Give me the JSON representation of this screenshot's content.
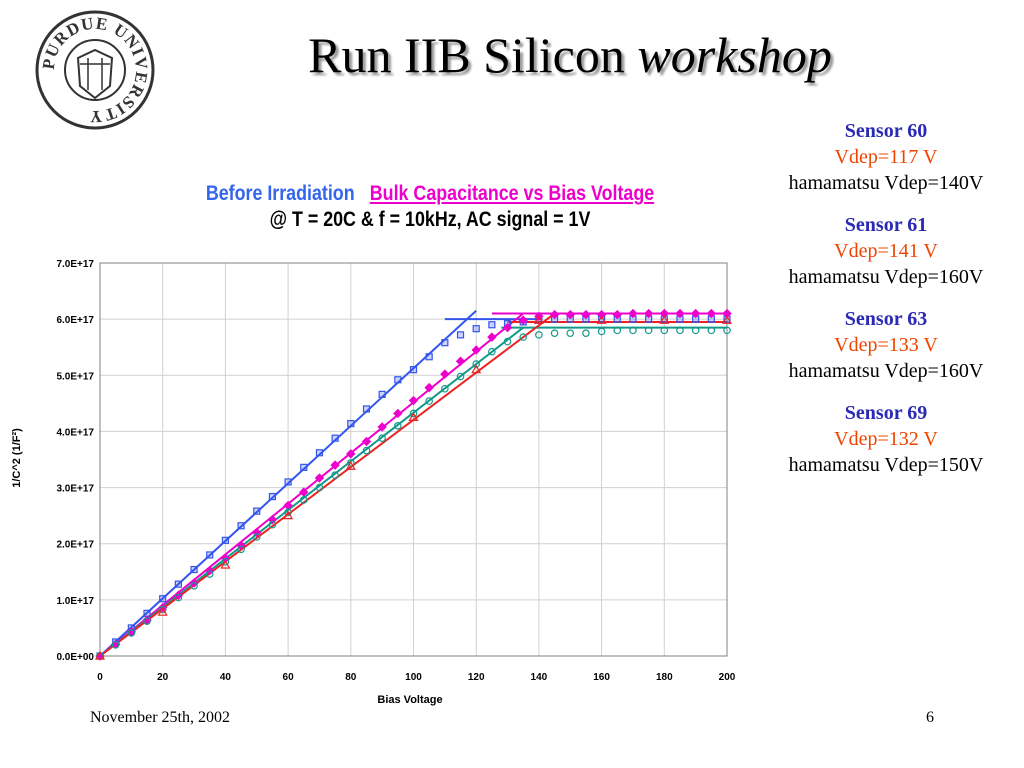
{
  "slide": {
    "title_main": "Run IIB Silicon ",
    "title_emph": "workshop",
    "footer_date": "November 25th, 2002",
    "page_number": "6",
    "logo_text": "PURDUE UNIVERSITY"
  },
  "heading": {
    "before": "Before Irradiation",
    "bulk": "Bulk Capacitance vs Bias Voltage",
    "conditions": "@ T = 20C & f = 10kHz, AC signal = 1V"
  },
  "sensors": [
    {
      "name": "Sensor 60",
      "vdep": "Vdep=117 V",
      "hamamatsu": "hamamatsu Vdep=140V"
    },
    {
      "name": "Sensor 61",
      "vdep": "Vdep=141 V",
      "hamamatsu": "hamamatsu Vdep=160V"
    },
    {
      "name": "Sensor 63",
      "vdep": "Vdep=133 V",
      "hamamatsu": "hamamatsu Vdep=160V"
    },
    {
      "name": "Sensor 69",
      "vdep": "Vdep=132 V",
      "hamamatsu": "hamamatsu Vdep=150V"
    }
  ],
  "chart_data": {
    "type": "scatter",
    "title": "",
    "xlabel": "Bias Voltage",
    "ylabel": "1/C^2 (1/F²)",
    "xlim": [
      0,
      200
    ],
    "ylim": [
      0,
      7e+17
    ],
    "x_ticks": [
      0,
      20,
      40,
      60,
      80,
      100,
      120,
      140,
      160,
      180,
      200
    ],
    "y_ticks": [
      0,
      1e+17,
      2e+17,
      3e+17,
      4e+17,
      5e+17,
      6e+17,
      7e+17
    ],
    "x_tick_labels": [
      "0",
      "20",
      "40",
      "60",
      "80",
      "100",
      "120",
      "140",
      "160",
      "180",
      "200"
    ],
    "y_tick_labels": [
      "0.0E+00",
      "1.0E+17",
      "2.0E+17",
      "3.0E+17",
      "4.0E+17",
      "5.0E+17",
      "6.0E+17",
      "7.0E+17"
    ],
    "grid": true,
    "series": [
      {
        "marker": "square",
        "color": "#3355ee",
        "x": [
          0,
          5,
          10,
          15,
          20,
          25,
          30,
          35,
          40,
          45,
          50,
          55,
          60,
          65,
          70,
          75,
          80,
          85,
          90,
          95,
          100,
          105,
          110,
          115,
          120,
          125,
          130,
          135,
          140,
          145,
          150,
          155,
          160,
          165,
          170,
          175,
          180,
          185,
          190,
          195,
          200
        ],
        "y": [
          0,
          2.5e+16,
          5e+16,
          7.6e+16,
          1.02e+17,
          1.28e+17,
          1.54e+17,
          1.8e+17,
          2.06e+17,
          2.32e+17,
          2.58e+17,
          2.84e+17,
          3.1e+17,
          3.36e+17,
          3.62e+17,
          3.88e+17,
          4.14e+17,
          4.4e+17,
          4.66e+17,
          4.92e+17,
          5.1e+17,
          5.33e+17,
          5.58e+17,
          5.72e+17,
          5.83e+17,
          5.9e+17,
          5.92e+17,
          5.95e+17,
          5.98e+17,
          6e+17,
          6e+17,
          6e+17,
          6e+17,
          6e+17,
          6e+17,
          6e+17,
          6e+17,
          6e+17,
          6e+17,
          6e+17,
          6e+17
        ],
        "fit": [
          [
            0,
            0
          ],
          [
            120,
            6.15e+17
          ]
        ],
        "plateau": [
          [
            110,
            6e+17
          ],
          [
            140,
            6e+17
          ]
        ]
      },
      {
        "marker": "diamond",
        "color": "#ee00cc",
        "x": [
          0,
          5,
          10,
          15,
          20,
          25,
          30,
          35,
          40,
          45,
          50,
          55,
          60,
          65,
          70,
          75,
          80,
          85,
          90,
          95,
          100,
          105,
          110,
          115,
          120,
          125,
          130,
          135,
          140,
          145,
          150,
          155,
          160,
          165,
          170,
          175,
          180,
          185,
          190,
          195,
          200
        ],
        "y": [
          0,
          2.1e+16,
          4.3e+16,
          6.4e+16,
          8.6e+16,
          1.08e+17,
          1.3e+17,
          1.52e+17,
          1.74e+17,
          1.97e+17,
          2.2e+17,
          2.43e+17,
          2.68e+17,
          2.92e+17,
          3.17e+17,
          3.4e+17,
          3.6e+17,
          3.82e+17,
          4.08e+17,
          4.32e+17,
          4.55e+17,
          4.78e+17,
          5.02e+17,
          5.25e+17,
          5.45e+17,
          5.68e+17,
          5.85e+17,
          5.98e+17,
          6.05e+17,
          6.08e+17,
          6.08e+17,
          6.08e+17,
          6.08e+17,
          6.08e+17,
          6.1e+17,
          6.1e+17,
          6.1e+17,
          6.1e+17,
          6.1e+17,
          6.1e+17,
          6.1e+17
        ],
        "fit": [
          [
            0,
            0
          ],
          [
            135,
            6.1e+17
          ]
        ],
        "plateau": [
          [
            125,
            6.1e+17
          ],
          [
            200,
            6.1e+17
          ]
        ]
      },
      {
        "marker": "circle",
        "color": "#11998a",
        "x": [
          0,
          5,
          10,
          15,
          20,
          25,
          30,
          35,
          40,
          45,
          50,
          55,
          60,
          65,
          70,
          75,
          80,
          85,
          90,
          95,
          100,
          105,
          110,
          115,
          120,
          125,
          130,
          135,
          140,
          145,
          150,
          155,
          160,
          165,
          170,
          175,
          180,
          185,
          190,
          195,
          200
        ],
        "y": [
          0,
          2e+16,
          4.1e+16,
          6.2e+16,
          8.3e+16,
          1.04e+17,
          1.25e+17,
          1.46e+17,
          1.68e+17,
          1.9e+17,
          2.12e+17,
          2.34e+17,
          2.56e+17,
          2.78e+17,
          3e+17,
          3.22e+17,
          3.44e+17,
          3.66e+17,
          3.88e+17,
          4.1e+17,
          4.32e+17,
          4.54e+17,
          4.76e+17,
          4.98e+17,
          5.2e+17,
          5.42e+17,
          5.6e+17,
          5.68e+17,
          5.72e+17,
          5.75e+17,
          5.75e+17,
          5.75e+17,
          5.78e+17,
          5.8e+17,
          5.8e+17,
          5.8e+17,
          5.8e+17,
          5.8e+17,
          5.8e+17,
          5.8e+17,
          5.8e+17
        ],
        "fit": [
          [
            0,
            0
          ],
          [
            135,
            5.85e+17
          ]
        ],
        "plateau": [
          [
            128,
            5.85e+17
          ],
          [
            200,
            5.85e+17
          ]
        ]
      },
      {
        "marker": "triangle",
        "color": "#ee2222",
        "x": [
          0,
          20,
          40,
          60,
          80,
          100,
          120,
          140,
          160,
          180,
          200
        ],
        "y": [
          0,
          7.8e+16,
          1.62e+17,
          2.5e+17,
          3.38e+17,
          4.25e+17,
          5.1e+17,
          5.98e+17,
          5.98e+17,
          5.98e+17,
          5.98e+17
        ],
        "fit": [
          [
            0,
            0
          ],
          [
            145,
            6.1e+17
          ]
        ],
        "plateau": [
          [
            130,
            5.95e+17
          ],
          [
            200,
            5.95e+17
          ]
        ]
      }
    ],
    "extra_points": [
      {
        "series": 0,
        "points": [
          [
            130,
            5.92e+17
          ],
          [
            135,
            5.95e+17
          ]
        ]
      }
    ]
  }
}
